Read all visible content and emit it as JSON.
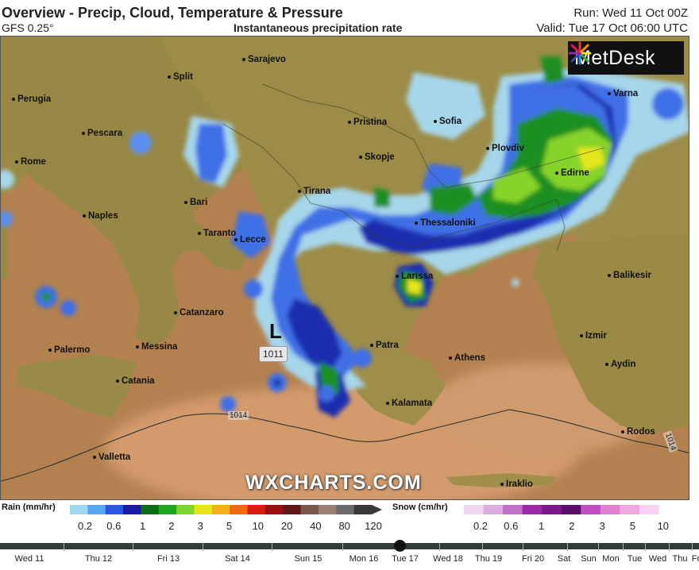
{
  "header": {
    "title": "Overview - Precip, Cloud, Temperature & Pressure",
    "model": "GFS 0.25°",
    "subtitle": "Instantaneous precipitation rate",
    "run": "Run: Wed 11 Oct 00Z",
    "valid": "Valid: Tue 17 Oct 06:00 UTC"
  },
  "logo": {
    "text": "MetDesk"
  },
  "watermark": "WXCHARTS.COM",
  "pressure": {
    "low_symbol": "L",
    "low_value": "1011",
    "isobar_labels": [
      "1014",
      "1014"
    ]
  },
  "cities": [
    {
      "name": "Sarajevo"
    },
    {
      "name": "Split"
    },
    {
      "name": "Perugia"
    },
    {
      "name": "Pescara"
    },
    {
      "name": "Pristina"
    },
    {
      "name": "Sofia"
    },
    {
      "name": "Varna"
    },
    {
      "name": "Plovdiv"
    },
    {
      "name": "Rome"
    },
    {
      "name": "Skopje"
    },
    {
      "name": "Edirne"
    },
    {
      "name": "Bari"
    },
    {
      "name": "Tirana"
    },
    {
      "name": "Naples"
    },
    {
      "name": "Thessaloniki"
    },
    {
      "name": "Taranto"
    },
    {
      "name": "Lecce"
    },
    {
      "name": "Larissa"
    },
    {
      "name": "Balikesir"
    },
    {
      "name": "Catanzaro"
    },
    {
      "name": "Izmir"
    },
    {
      "name": "Palermo"
    },
    {
      "name": "Messina"
    },
    {
      "name": "Patra"
    },
    {
      "name": "Athens"
    },
    {
      "name": "Aydin"
    },
    {
      "name": "Catania"
    },
    {
      "name": "Kalamata"
    },
    {
      "name": "Rodos"
    },
    {
      "name": "Valletta"
    },
    {
      "name": "Iraklio"
    }
  ],
  "legend": {
    "rain_title": "Rain (mm/hr)",
    "rain_ticks": [
      "0.2",
      "0.6",
      "1",
      "2",
      "3",
      "5",
      "10",
      "20",
      "40",
      "80",
      "120"
    ],
    "rain_colors": [
      "#a0d8ee",
      "#5aa6f0",
      "#2a55e6",
      "#1a1aa6",
      "#0e6e16",
      "#1fa81f",
      "#7fd52a",
      "#e6e61a",
      "#f5b017",
      "#ef6a10",
      "#d81e12",
      "#9a0f0f",
      "#5e1a16",
      "#7a5a4a",
      "#9a8070",
      "#6a6a6a",
      "#3a3a3a"
    ],
    "snow_title": "Snow (cm/hr)",
    "snow_ticks": [
      "0.2",
      "0.6",
      "1",
      "2",
      "3",
      "5",
      "10"
    ],
    "snow_colors": [
      "#f0d8f0",
      "#dcaee0",
      "#c070c8",
      "#9a2aa6",
      "#7a1a8a",
      "#5a1068",
      "#c050c0",
      "#e080d0",
      "#f0a8e0",
      "#f8d0f0",
      "#ffffff"
    ]
  },
  "timeline": {
    "labels": [
      "Wed 11",
      "Thu 12",
      "Fri 13",
      "Sat 14",
      "Sun 15",
      "Mon 16",
      "Tue 17",
      "Wed 18",
      "Thu 19",
      "Fri 20",
      "Sat",
      "Sun",
      "Mon",
      "Tue",
      "Wed",
      "Thu",
      "Fr"
    ],
    "current": "Tue 17"
  },
  "colors": {
    "sea": "#b9824f",
    "land": "#9d8c45",
    "rain_light": "#9fd3ea",
    "rain_mid": "#3a66e6",
    "rain_heavy": "#1a2aa8",
    "rain_green": "#1e8c1e"
  }
}
